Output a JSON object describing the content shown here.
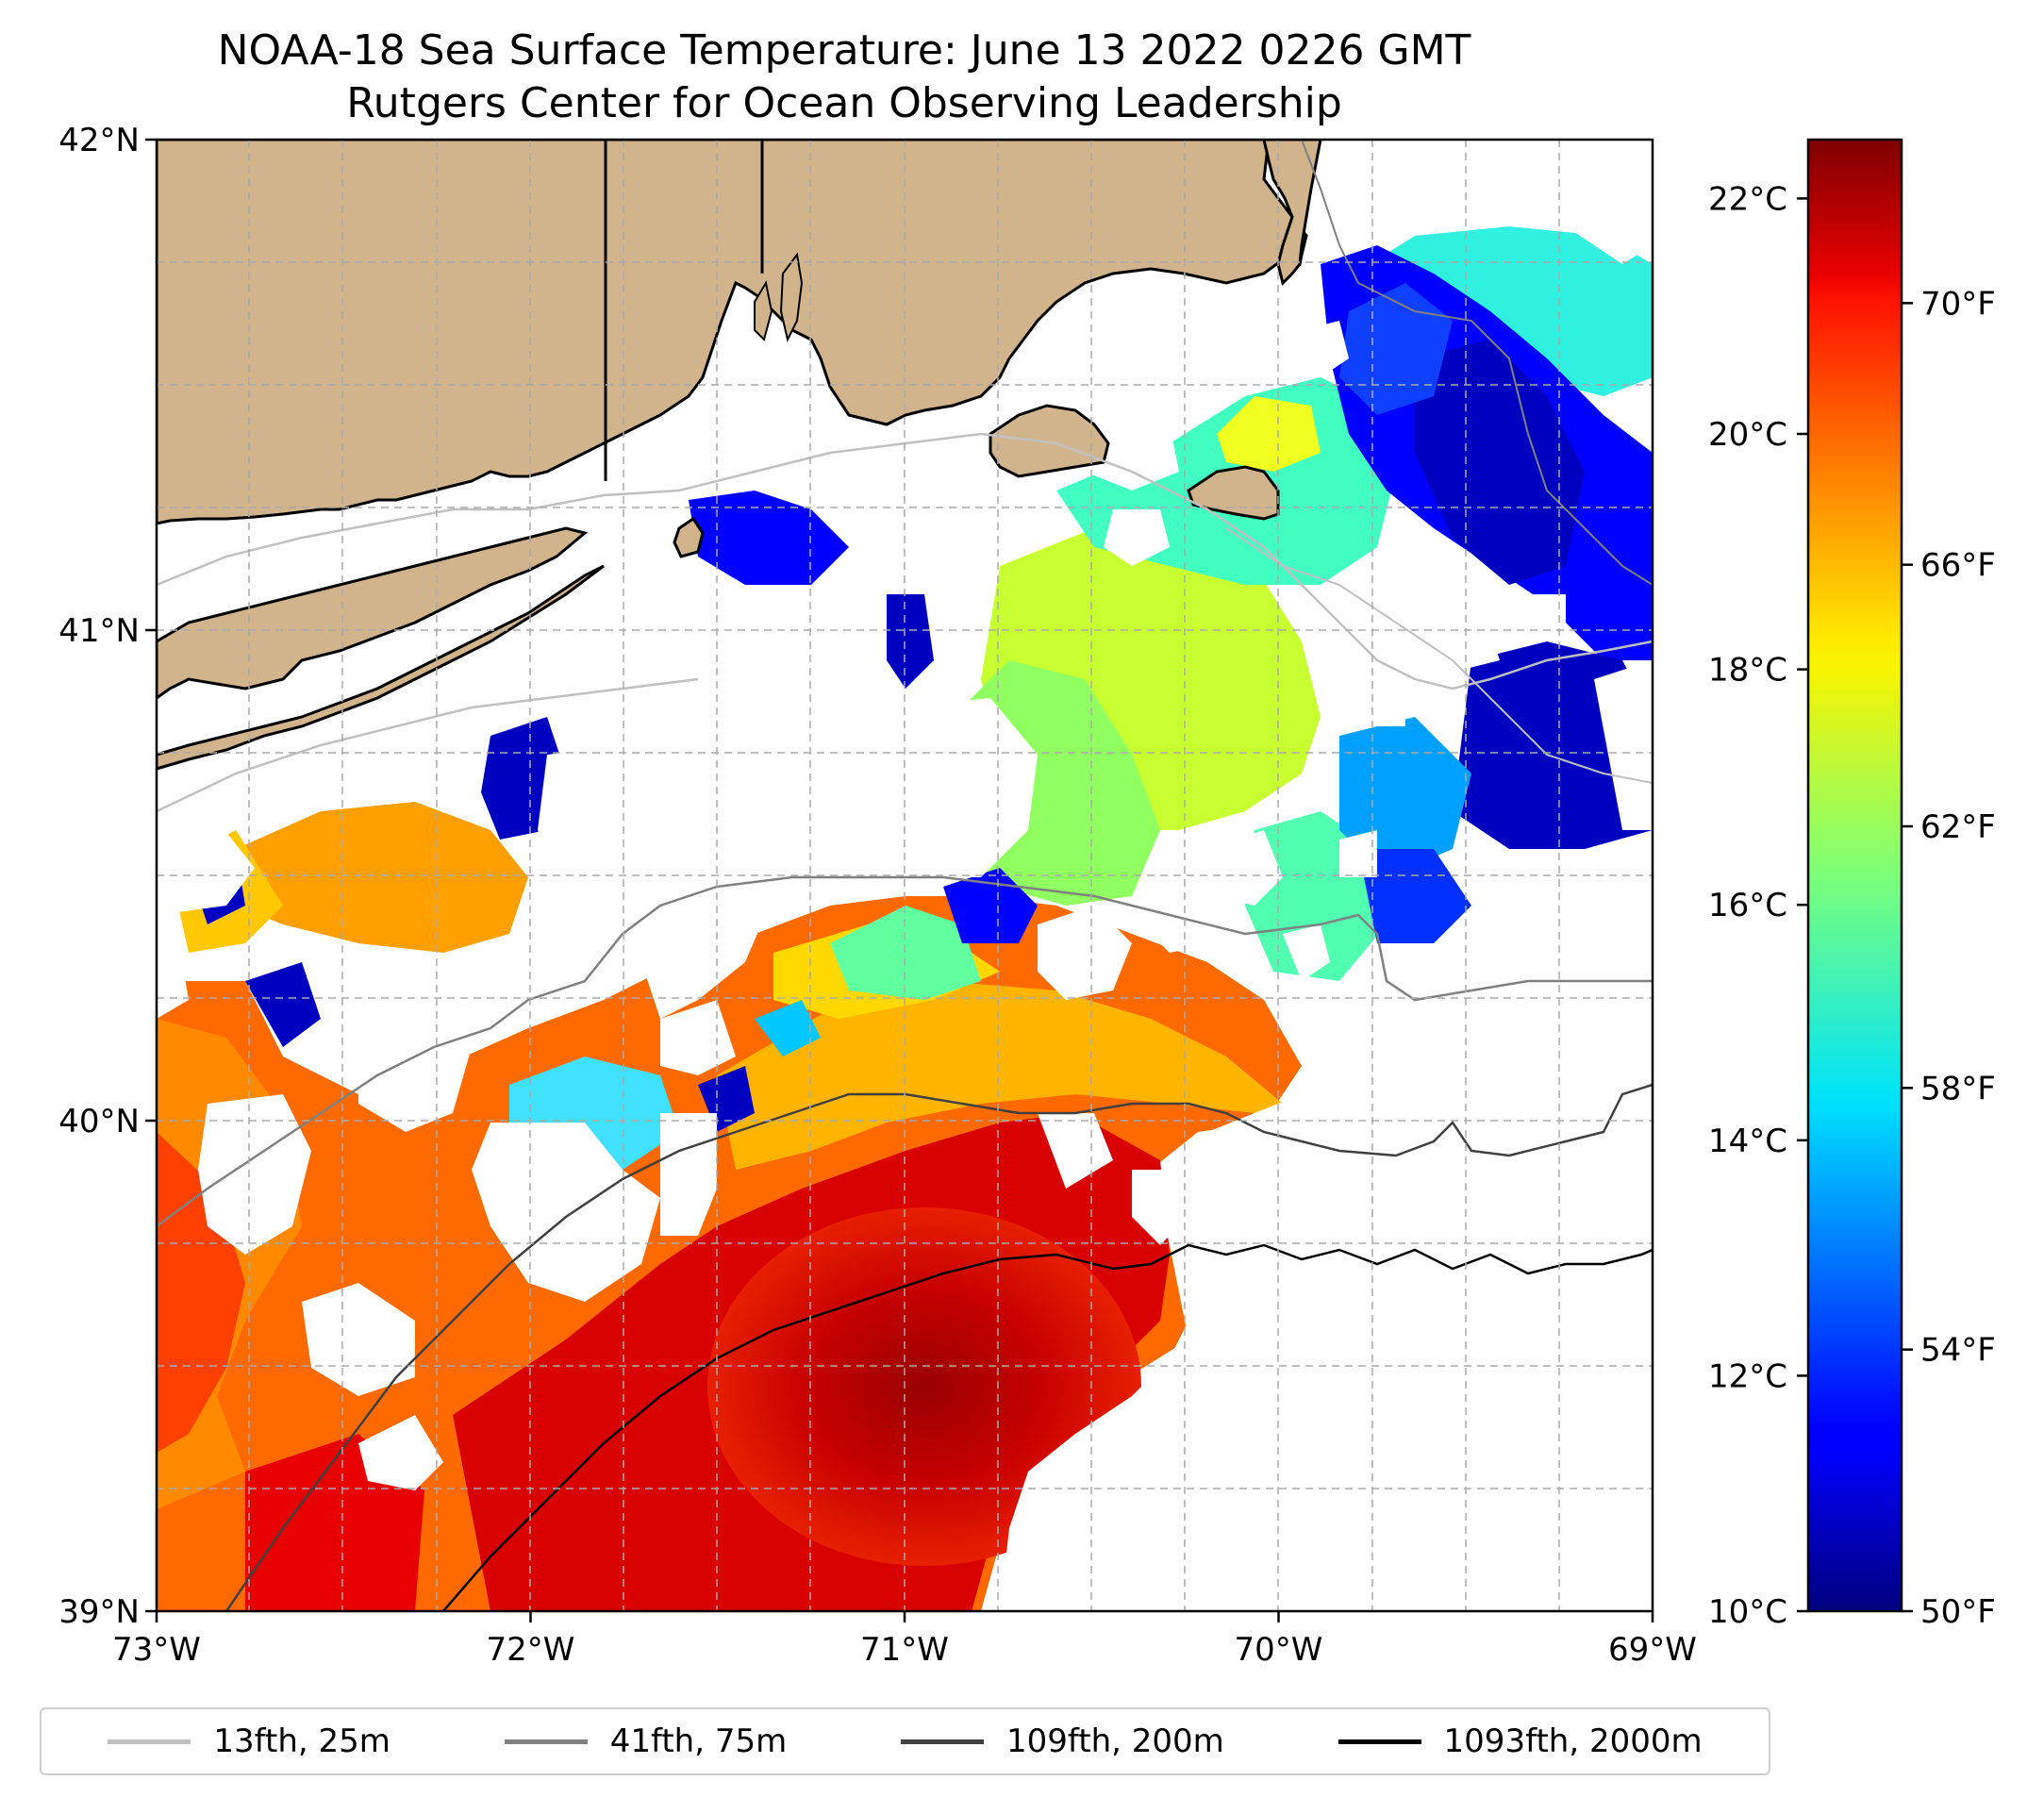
{
  "title": {
    "line1": "NOAA-18 Sea Surface Temperature: June 13 2022 0226 GMT",
    "line2": "Rutgers Center for Ocean Observing Leadership"
  },
  "map": {
    "lat_range": [
      39,
      42
    ],
    "lon_range": [
      -73,
      -69
    ],
    "x_ticks": [
      "73°W",
      "72°W",
      "71°W",
      "70°W",
      "69°W"
    ],
    "y_ticks": [
      "39°N",
      "40°N",
      "41°N",
      "42°N"
    ],
    "gridlines": true,
    "land_color": "#d2b48c",
    "coastline_color": "#000000",
    "no_data_color": "#ffffff"
  },
  "colorbar": {
    "colormap": "jet",
    "range_c": [
      10,
      22.5
    ],
    "celsius_ticks": [
      "10°C",
      "12°C",
      "14°C",
      "16°C",
      "18°C",
      "20°C",
      "22°C"
    ],
    "celsius_values": [
      10,
      12,
      14,
      16,
      18,
      20,
      22
    ],
    "fahrenheit_ticks": [
      "50°F",
      "54°F",
      "58°F",
      "62°F",
      "66°F",
      "70°F"
    ],
    "fahrenheit_values": [
      50,
      54,
      58,
      62,
      66,
      70
    ]
  },
  "legend": {
    "placement": "bottom",
    "items": [
      {
        "label": "13fth, 25m",
        "color": "#c0c0c0"
      },
      {
        "label": "41fth, 75m",
        "color": "#808080"
      },
      {
        "label": "109fth, 200m",
        "color": "#404040"
      },
      {
        "label": "1093fth, 2000m",
        "color": "#000000"
      }
    ]
  }
}
